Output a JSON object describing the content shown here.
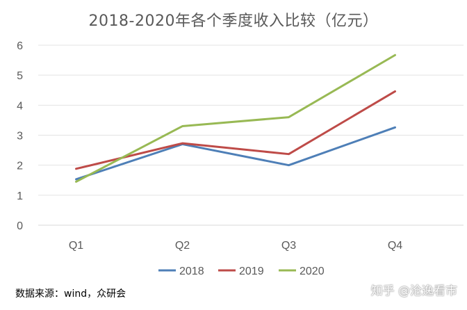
{
  "chart_data": {
    "type": "line",
    "title": "2018-2020年各个季度收入比较（亿元）",
    "categories": [
      "Q1",
      "Q2",
      "Q3",
      "Q4"
    ],
    "series": [
      {
        "name": "2018",
        "values": [
          1.53,
          2.7,
          2.0,
          3.26
        ],
        "color": "#4e7fb7"
      },
      {
        "name": "2019",
        "values": [
          1.88,
          2.73,
          2.37,
          4.46
        ],
        "color": "#be4b48"
      },
      {
        "name": "2020",
        "values": [
          1.45,
          3.3,
          3.6,
          5.67
        ],
        "color": "#98b954"
      }
    ],
    "ylim": [
      0,
      6
    ],
    "yticks": [
      0,
      1,
      2,
      3,
      4,
      5,
      6
    ],
    "grid": true,
    "legend_position": "bottom"
  },
  "source_text": "数据来源：wind，众研会",
  "watermark_text": "知乎 @沧逸看市"
}
